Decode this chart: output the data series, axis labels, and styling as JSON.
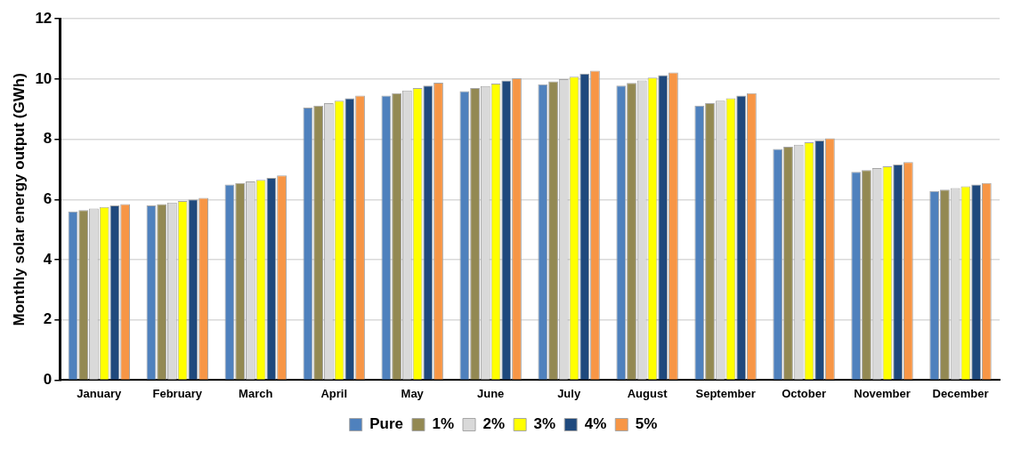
{
  "chart_data": {
    "type": "bar",
    "ylabel": "Monthly solar energy output (GWh)",
    "categories": [
      "January",
      "February",
      "March",
      "April",
      "May",
      "June",
      "July",
      "August",
      "September",
      "October",
      "November",
      "December"
    ],
    "series": [
      {
        "name": "Pure",
        "color": "#4f81bd",
        "values": [
          5.6,
          5.8,
          6.5,
          9.05,
          9.45,
          9.6,
          9.83,
          9.78,
          9.12,
          7.68,
          6.92,
          6.28
        ]
      },
      {
        "name": "1%",
        "color": "#938953",
        "values": [
          5.65,
          5.85,
          6.55,
          9.12,
          9.53,
          9.7,
          9.92,
          9.87,
          9.2,
          7.75,
          6.98,
          6.33
        ]
      },
      {
        "name": "2%",
        "color": "#d9d9d9",
        "values": [
          5.7,
          5.9,
          6.6,
          9.2,
          9.62,
          9.77,
          10.0,
          9.95,
          9.28,
          7.82,
          7.04,
          6.38
        ]
      },
      {
        "name": "3%",
        "color": "#ffff00",
        "values": [
          5.75,
          5.95,
          6.65,
          9.28,
          9.7,
          9.85,
          10.08,
          10.05,
          9.36,
          7.9,
          7.1,
          6.44
        ]
      },
      {
        "name": "4%",
        "color": "#1f497d",
        "values": [
          5.8,
          6.0,
          6.72,
          9.36,
          9.78,
          9.95,
          10.18,
          10.13,
          9.45,
          7.96,
          7.16,
          6.5
        ]
      },
      {
        "name": "5%",
        "color": "#f79646",
        "values": [
          5.85,
          6.05,
          6.8,
          9.45,
          9.88,
          10.03,
          10.28,
          10.22,
          9.53,
          8.03,
          7.24,
          6.55
        ]
      }
    ],
    "ylim": [
      0,
      12
    ],
    "yticks": [
      0,
      2,
      4,
      6,
      8,
      10,
      12
    ],
    "grid": "y",
    "legend": "bottom"
  }
}
